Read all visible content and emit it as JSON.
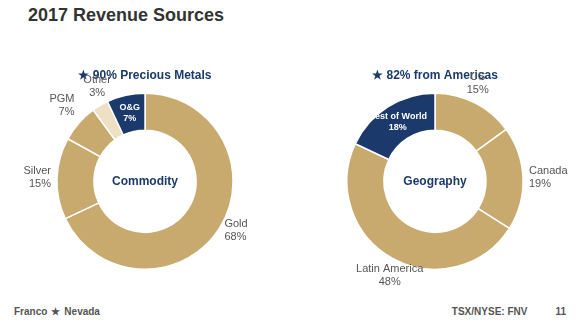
{
  "title": "2017 Revenue Sources",
  "annotations": [
    "Franco",
    "★",
    "Nevada",
    "TSX/NYSE: FNV",
    "11"
  ],
  "chart_data": [
    {
      "type": "doughnut",
      "title": "★ 90% Precious Metals",
      "annotations": [
        "Commodity"
      ],
      "categories": [
        "Gold",
        "Silver",
        "PGM",
        "Other",
        "O&G"
      ],
      "values": [
        68,
        15,
        7,
        3,
        7
      ],
      "value_labels": [
        "68%",
        "15%",
        "7%",
        "3%",
        "7%"
      ],
      "colors": [
        "#C8A96E",
        "#C8A96E",
        "#C8A96E",
        "#EDE0C4",
        "#1B3A6B"
      ],
      "data_labels": true
    },
    {
      "type": "doughnut",
      "title": "★ 82% from Americas",
      "annotations": [
        "Geography"
      ],
      "categories": [
        "US",
        "Canada",
        "Latin America",
        "Rest of World"
      ],
      "values": [
        15,
        19,
        48,
        18
      ],
      "value_labels": [
        "15%",
        "19%",
        "48%",
        "18%"
      ],
      "colors": [
        "#C8A96E",
        "#C8A96E",
        "#C8A96E",
        "#1B3A6B"
      ],
      "data_labels": true
    }
  ]
}
